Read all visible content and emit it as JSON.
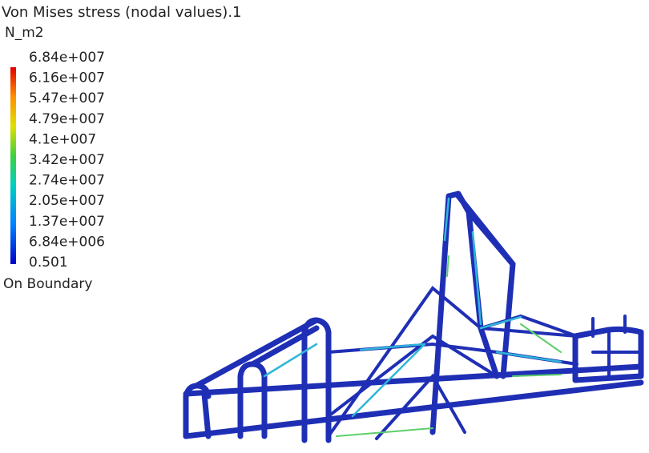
{
  "header": {
    "title": "Von Mises stress (nodal values).1",
    "unit": "N_m2"
  },
  "legend": {
    "labels": [
      "6.84e+007",
      "6.16e+007",
      "5.47e+007",
      "4.79e+007",
      "4.1e+007",
      "3.42e+007",
      "2.74e+007",
      "2.05e+007",
      "1.37e+007",
      "6.84e+006",
      "0.501"
    ],
    "footer": "On Boundary"
  }
}
